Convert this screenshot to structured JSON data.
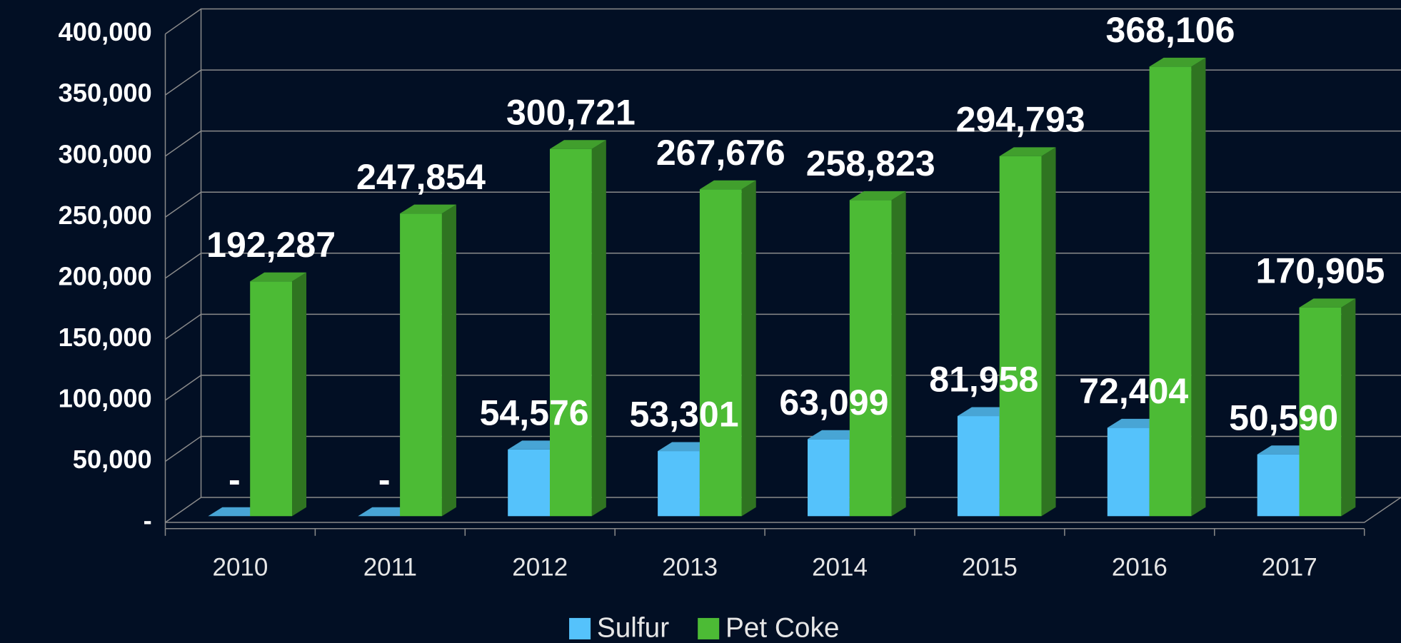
{
  "chart_data": {
    "type": "bar",
    "categories": [
      "2010",
      "2011",
      "2012",
      "2013",
      "2014",
      "2015",
      "2016",
      "2017"
    ],
    "series": [
      {
        "name": "Sulfur",
        "color": "#55c2fb",
        "values": [
          0,
          0,
          54576,
          53301,
          63099,
          81958,
          72404,
          50590
        ],
        "value_labels": [
          "-",
          "-",
          "54,576",
          "53,301",
          "63,099",
          "81,958",
          "72,404",
          "50,590"
        ]
      },
      {
        "name": "Pet Coke",
        "color": "#4cbb35",
        "values": [
          192287,
          247854,
          300721,
          267676,
          258823,
          294793,
          368106,
          170905
        ],
        "value_labels": [
          "192,287",
          "247,854",
          "300,721",
          "267,676",
          "258,823",
          "294,793",
          "368,106",
          "170,905"
        ]
      }
    ],
    "ylim": [
      0,
      400000
    ],
    "yticks": [
      {
        "value": 0,
        "label": "-"
      },
      {
        "value": 50000,
        "label": "50,000"
      },
      {
        "value": 100000,
        "label": "100,000"
      },
      {
        "value": 150000,
        "label": "150,000"
      },
      {
        "value": 200000,
        "label": "200,000"
      },
      {
        "value": 250000,
        "label": "250,000"
      },
      {
        "value": 300000,
        "label": "300,000"
      },
      {
        "value": 350000,
        "label": "350,000"
      },
      {
        "value": 400000,
        "label": "400,000"
      }
    ],
    "grid": true,
    "legend": "bottom"
  }
}
